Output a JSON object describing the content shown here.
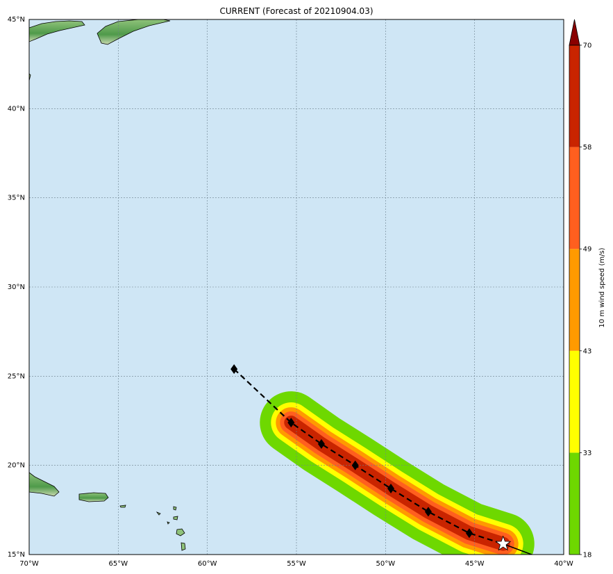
{
  "title": "CURRENT (Forecast of 20210904.03)",
  "map": {
    "lon_range": [
      -70,
      -40
    ],
    "lat_range": [
      15,
      45
    ],
    "lon_ticks": [
      {
        "value": -70,
        "label": "70°W"
      },
      {
        "value": -65,
        "label": "65°W"
      },
      {
        "value": -60,
        "label": "60°W"
      },
      {
        "value": -55,
        "label": "55°W"
      },
      {
        "value": -50,
        "label": "50°W"
      },
      {
        "value": -45,
        "label": "45°W"
      },
      {
        "value": -40,
        "label": "40°W"
      }
    ],
    "lat_ticks": [
      {
        "value": 15,
        "label": "15°N"
      },
      {
        "value": 20,
        "label": "20°N"
      },
      {
        "value": 25,
        "label": "25°N"
      },
      {
        "value": 30,
        "label": "30°N"
      },
      {
        "value": 35,
        "label": "35°N"
      },
      {
        "value": 40,
        "label": "40°N"
      },
      {
        "value": 45,
        "label": "45°N"
      }
    ],
    "gridlines": true,
    "ocean_color": "#cfe6f5",
    "land_color": "#6fae5a"
  },
  "colorbar": {
    "label": "10 m wind speed (m/s)",
    "levels": [
      18,
      33,
      43,
      49,
      58,
      70
    ],
    "colors": [
      "#6ed800",
      "#ffff00",
      "#ff9a00",
      "#ff5f1f",
      "#c92400"
    ],
    "extend_color": "#8a0000",
    "tick_labels": [
      "18",
      "33",
      "43",
      "49",
      "58",
      "70"
    ]
  },
  "chart_data": {
    "type": "map",
    "track": {
      "points": [
        {
          "lon": -58.5,
          "lat": 25.4
        },
        {
          "lon": -55.3,
          "lat": 22.4
        },
        {
          "lon": -53.6,
          "lat": 21.2
        },
        {
          "lon": -51.7,
          "lat": 20.0
        },
        {
          "lon": -49.7,
          "lat": 18.7
        },
        {
          "lon": -47.6,
          "lat": 17.4
        },
        {
          "lon": -45.3,
          "lat": 16.2
        }
      ],
      "current_position": {
        "lon": -43.4,
        "lat": 15.6
      },
      "past_track": [
        {
          "lon": -43.4,
          "lat": 15.6
        },
        {
          "lon": -41.8,
          "lat": 15.0
        }
      ]
    },
    "wind_swath": {
      "path": [
        {
          "lon": -55.3,
          "lat": 22.4
        },
        {
          "lon": -53.6,
          "lat": 21.2
        },
        {
          "lon": -51.7,
          "lat": 20.0
        },
        {
          "lon": -49.7,
          "lat": 18.7
        },
        {
          "lon": -47.6,
          "lat": 17.4
        },
        {
          "lon": -45.3,
          "lat": 16.2
        },
        {
          "lon": -43.4,
          "lat": 15.6
        }
      ],
      "bands": [
        {
          "threshold": 18,
          "color": "#6ed800"
        },
        {
          "threshold": 33,
          "color": "#ffff00"
        },
        {
          "threshold": 43,
          "color": "#ff9a00"
        },
        {
          "threshold": 49,
          "color": "#ff5f1f"
        },
        {
          "threshold": 58,
          "color": "#c92400"
        }
      ]
    }
  }
}
